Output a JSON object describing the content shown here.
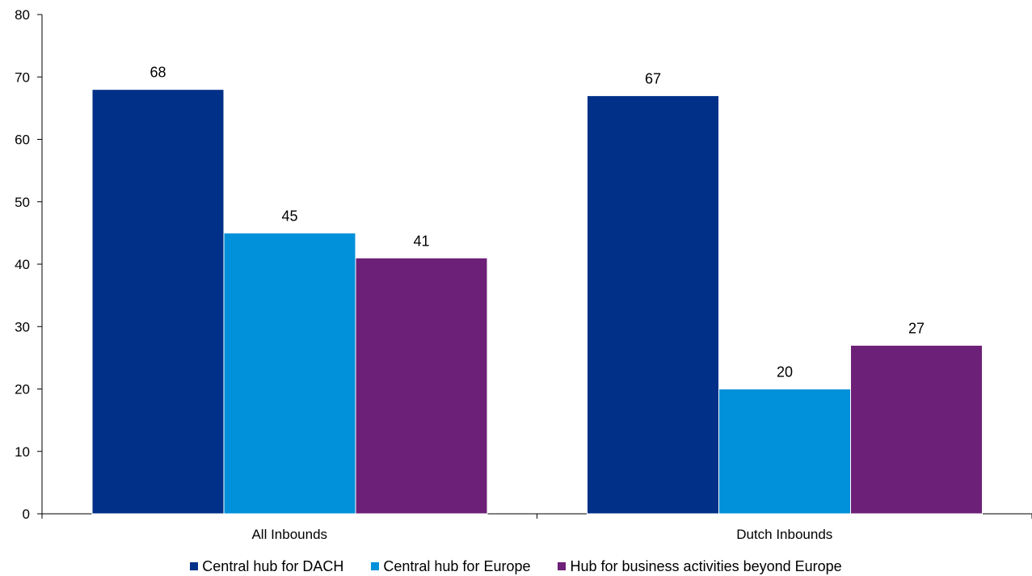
{
  "chart_data": {
    "type": "bar",
    "title": "",
    "xlabel": "",
    "ylabel": "",
    "ylim": [
      0,
      80
    ],
    "yticks": [
      0,
      10,
      20,
      30,
      40,
      50,
      60,
      70,
      80
    ],
    "grid": false,
    "legend_position": "bottom",
    "data_labels": true,
    "categories": [
      "All Inbounds",
      "Dutch Inbounds"
    ],
    "series": [
      {
        "name": "Central hub for DACH",
        "color": "#003087",
        "values": [
          68,
          67
        ]
      },
      {
        "name": "Central hub for Europe",
        "color": "#0091DA",
        "values": [
          45,
          20
        ]
      },
      {
        "name": "Hub for business activities beyond Europe",
        "color": "#6D2077",
        "values": [
          41,
          27
        ]
      }
    ]
  }
}
